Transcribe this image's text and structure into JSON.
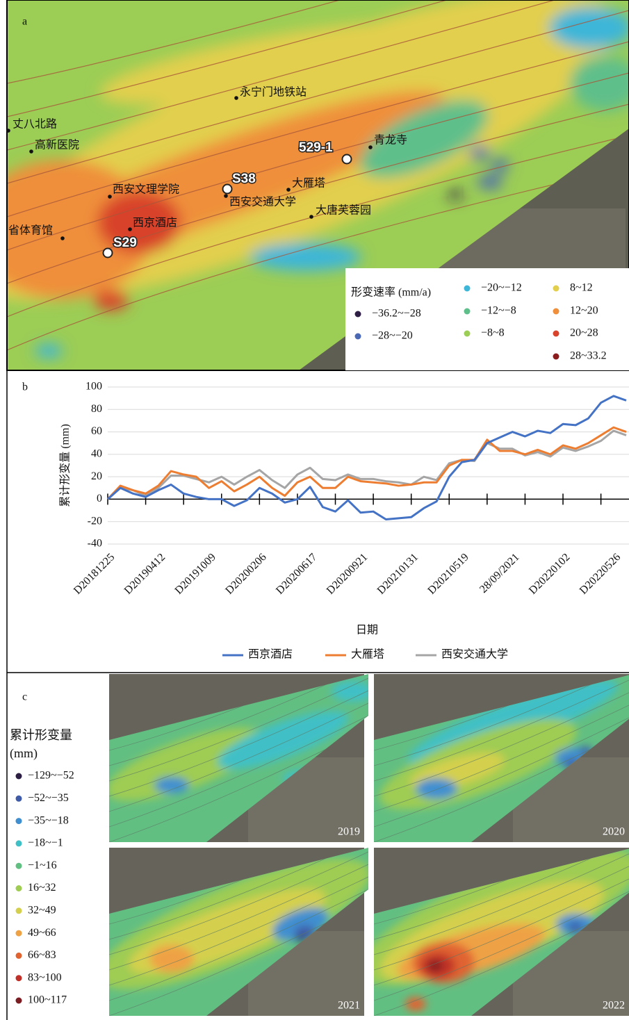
{
  "panel_a": {
    "label": "a",
    "places": [
      "永宁门地铁站",
      "丈八北路",
      "高新医院",
      "青龙寺",
      "西安文理学院",
      "大雁塔",
      "西安交通大学",
      "大唐芙蓉园",
      "西京酒店",
      "省体育馆"
    ],
    "points": [
      "529-1",
      "S38",
      "S29"
    ],
    "legend": {
      "title": "形变速率 (mm/a)",
      "items": [
        {
          "label": "−36.2~−28",
          "color": "#2e1d45"
        },
        {
          "label": "−28~−20",
          "color": "#4a68b3"
        },
        {
          "label": "−20~−12",
          "color": "#3db6d8"
        },
        {
          "label": "−12~−8",
          "color": "#5fbf8a"
        },
        {
          "label": "−8~8",
          "color": "#9ccd55"
        },
        {
          "label": "8~12",
          "color": "#e2cf4e"
        },
        {
          "label": "12~20",
          "color": "#ef8f3b"
        },
        {
          "label": "20~28",
          "color": "#d8432c"
        },
        {
          "label": "28~33.2",
          "color": "#8a1c1e"
        }
      ]
    }
  },
  "chart_data": {
    "type": "line",
    "label": "b",
    "x_label": "日期",
    "y_label": "累计形变量 (mm)",
    "categories": [
      "D20181225",
      null,
      null,
      null,
      "D20190412",
      null,
      null,
      null,
      "D20191009",
      null,
      null,
      null,
      "D20200206",
      null,
      null,
      null,
      "D20200617",
      null,
      null,
      null,
      "D20200921",
      null,
      null,
      null,
      "D20210131",
      null,
      null,
      null,
      "D20210519",
      null,
      null,
      null,
      "28/09/2021",
      null,
      null,
      null,
      "D20220102",
      null,
      null,
      null,
      "D20220526",
      null
    ],
    "ylim": [
      -40,
      100
    ],
    "yticks": [
      -40,
      -20,
      0,
      20,
      40,
      60,
      80,
      100
    ],
    "grid": true,
    "series": [
      {
        "name": "西京酒店",
        "color": "#4472c4",
        "values": [
          0,
          10,
          5,
          2,
          8,
          13,
          5,
          2,
          0,
          0,
          -6,
          -1,
          10,
          5,
          -3,
          0,
          11,
          -7,
          -11,
          -1,
          -12,
          -11,
          -18,
          -17,
          -16,
          -8,
          -2,
          20,
          33,
          35,
          50,
          55,
          60,
          56,
          61,
          59,
          67,
          66,
          72,
          86,
          92,
          88
        ]
      },
      {
        "name": "大雁塔",
        "color": "#ed7d31",
        "values": [
          0,
          12,
          8,
          5,
          12,
          25,
          22,
          20,
          10,
          16,
          7,
          13,
          20,
          10,
          3,
          15,
          20,
          10,
          10,
          20,
          16,
          15,
          14,
          12,
          13,
          15,
          15,
          30,
          35,
          35,
          53,
          43,
          43,
          40,
          44,
          40,
          48,
          45,
          50,
          57,
          64,
          60
        ]
      },
      {
        "name": "西安交通大学",
        "color": "#a5a5a5",
        "values": [
          0,
          10,
          8,
          3,
          10,
          21,
          21,
          18,
          15,
          20,
          13,
          20,
          26,
          17,
          10,
          22,
          28,
          18,
          17,
          22,
          18,
          18,
          16,
          15,
          13,
          20,
          17,
          32,
          35,
          34,
          50,
          45,
          45,
          39,
          42,
          38,
          46,
          43,
          47,
          52,
          61,
          57
        ]
      }
    ]
  },
  "panel_c": {
    "label": "c",
    "legend": {
      "title": "累计形变量 (mm)",
      "items": [
        {
          "label": "−129~−52",
          "color": "#2b1e42"
        },
        {
          "label": "−52~−35",
          "color": "#3f5ba8"
        },
        {
          "label": "−35~−18",
          "color": "#3f8fd0"
        },
        {
          "label": "−18~−1",
          "color": "#3fc0c6"
        },
        {
          "label": "−1~16",
          "color": "#62bf82"
        },
        {
          "label": "16~32",
          "color": "#9fcc52"
        },
        {
          "label": "32~49",
          "color": "#d4d04e"
        },
        {
          "label": "49~66",
          "color": "#efa244"
        },
        {
          "label": "66~83",
          "color": "#e06330"
        },
        {
          "label": "83~100",
          "color": "#c03028"
        },
        {
          "label": "100~117",
          "color": "#7a1c22"
        }
      ]
    },
    "years": [
      "2019",
      "2020",
      "2021",
      "2022"
    ]
  }
}
